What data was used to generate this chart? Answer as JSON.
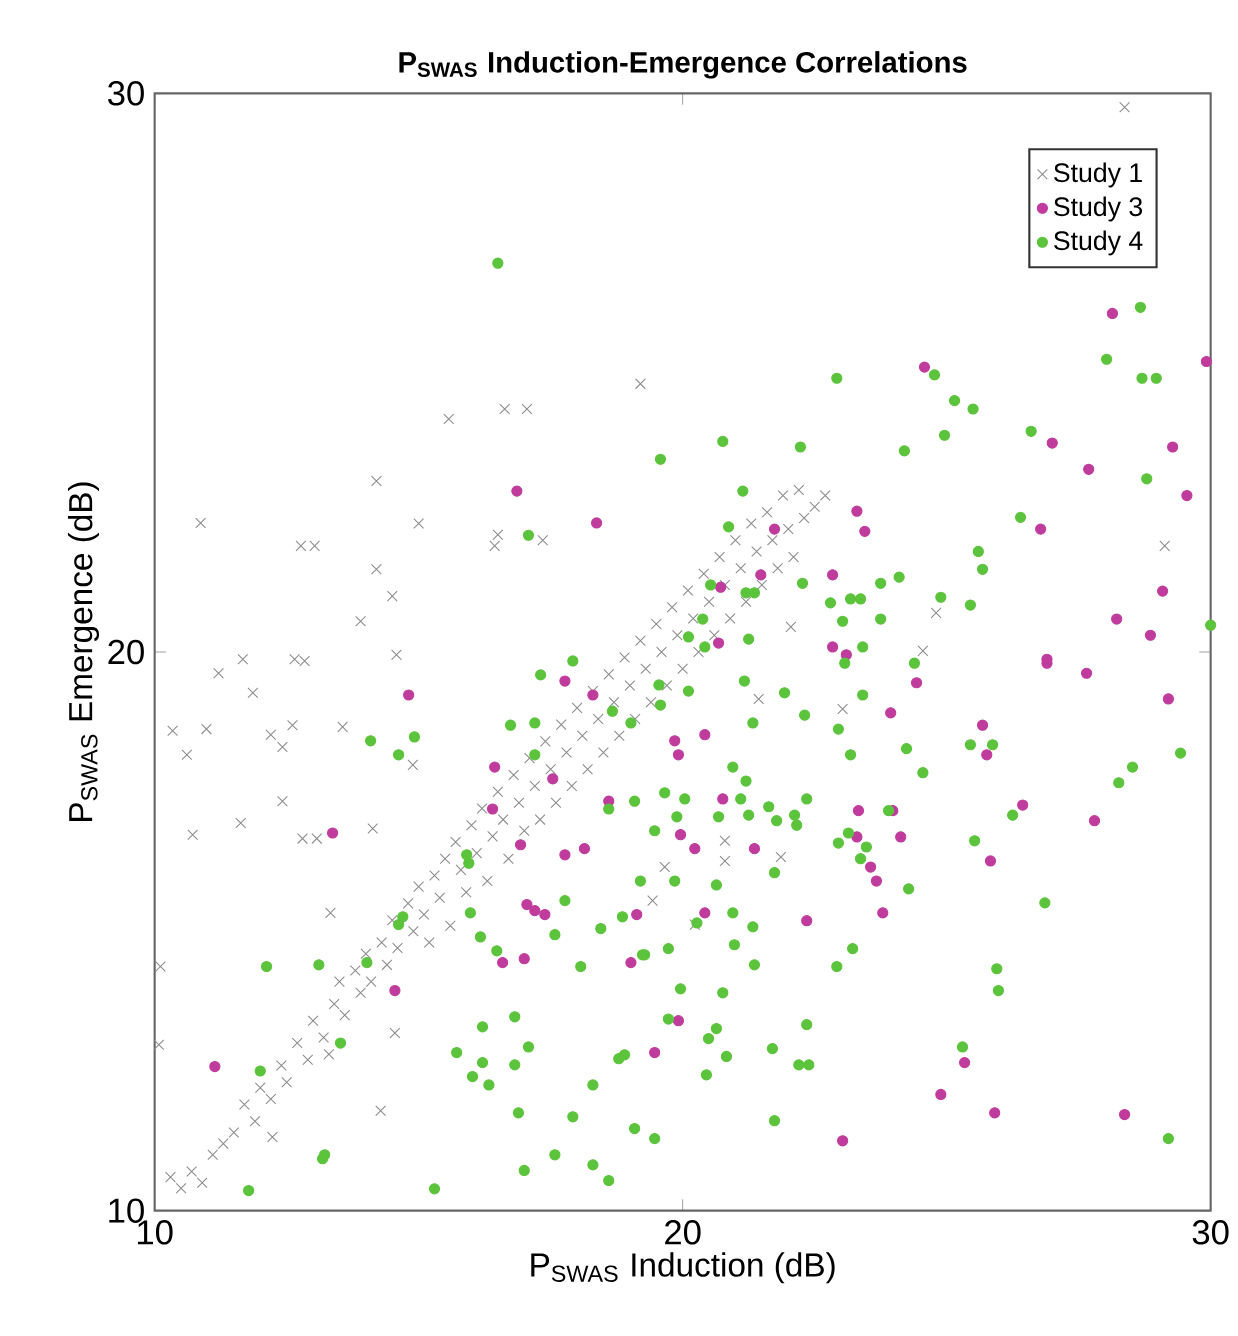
{
  "chart_data": {
    "type": "scatter",
    "title": "**P$_{SWAS}$ Induction-Emergence Correlations**",
    "xlabel": "P$_{SWAS}$ Induction (dB)",
    "ylabel": "P$_{SWAS}$ Emergence (dB)",
    "xlim": [
      10,
      30
    ],
    "ylim": [
      10,
      30
    ],
    "xticks": [
      10,
      20,
      30
    ],
    "yticks": [
      10,
      20,
      30
    ],
    "grid": false,
    "legend": "top right",
    "series": [
      {
        "name": "Study 1",
        "color": "#8c8c8c",
        "marker": "cross",
        "x": [
          16.5,
          10.87,
          12.77,
          13.03,
          14.2,
          14.2,
          14.5,
          13.9,
          15.0,
          15.57,
          16.63,
          17.05,
          16.44,
          17.35,
          19.2,
          28.37,
          29.13,
          11.21,
          11.67,
          11.86,
          12.65,
          12.84,
          14.58,
          10.34,
          10.98,
          10.61,
          12.2,
          12.42,
          12.61,
          13.56,
          12.42,
          11.63,
          10.72,
          12.8,
          13.07,
          14.13,
          14.89,
          10.11,
          10.08,
          13.33,
          14.55,
          14.28,
          12.23,
          10.3,
          10.5,
          10.7,
          10.9,
          11.1,
          11.3,
          11.5,
          11.7,
          11.9,
          12.0,
          12.2,
          12.4,
          12.5,
          12.7,
          12.9,
          13.0,
          13.2,
          13.3,
          13.4,
          13.5,
          13.6,
          13.8,
          13.9,
          14.0,
          14.1,
          14.3,
          14.4,
          14.5,
          14.6,
          14.8,
          14.9,
          15.0,
          15.1,
          15.2,
          15.3,
          15.4,
          15.5,
          15.6,
          15.7,
          15.8,
          15.9,
          16.0,
          16.1,
          16.2,
          16.3,
          16.4,
          16.5,
          16.6,
          16.7,
          16.8,
          16.9,
          17.0,
          17.1,
          17.2,
          17.3,
          17.4,
          17.5,
          17.6,
          17.7,
          17.8,
          17.9,
          18.0,
          18.1,
          18.2,
          18.3,
          18.4,
          18.5,
          18.6,
          18.7,
          18.8,
          18.9,
          19.0,
          19.1,
          19.2,
          19.3,
          19.4,
          19.5,
          19.6,
          19.7,
          19.8,
          19.9,
          20.0,
          20.1,
          20.2,
          20.3,
          20.4,
          20.5,
          20.6,
          20.7,
          20.8,
          20.9,
          21.0,
          21.1,
          21.2,
          21.3,
          21.4,
          21.5,
          21.6,
          21.7,
          21.8,
          21.9,
          22.0,
          22.1,
          22.2,
          22.3,
          22.5,
          22.7,
          24.8,
          24.55,
          22.05,
          23.03,
          21.44,
          20.8,
          20.8,
          21.86,
          19.66,
          19.43,
          20.23
        ],
        "values": [
          22.1,
          22.31,
          21.9,
          21.9,
          23.06,
          21.48,
          21.0,
          20.55,
          22.3,
          24.17,
          24.35,
          24.35,
          21.9,
          22.0,
          24.8,
          29.75,
          21.9,
          19.62,
          19.87,
          19.27,
          19.87,
          19.84,
          19.95,
          18.59,
          18.62,
          18.16,
          18.52,
          18.3,
          18.69,
          18.66,
          17.33,
          16.94,
          16.73,
          16.66,
          16.66,
          16.84,
          17.98,
          14.37,
          12.97,
          15.33,
          13.18,
          11.79,
          11.32,
          10.6,
          10.4,
          10.7,
          10.5,
          11.0,
          11.2,
          11.4,
          11.9,
          11.6,
          12.2,
          12.0,
          12.6,
          12.3,
          13.0,
          12.7,
          13.4,
          13.1,
          12.8,
          13.7,
          14.1,
          13.5,
          14.3,
          13.9,
          14.6,
          14.1,
          14.8,
          14.4,
          15.2,
          14.7,
          15.5,
          15.0,
          15.8,
          15.3,
          14.8,
          16.0,
          15.6,
          16.3,
          15.1,
          16.6,
          16.1,
          15.7,
          16.9,
          16.4,
          17.2,
          15.9,
          16.7,
          17.5,
          17.0,
          16.3,
          17.8,
          17.3,
          16.8,
          18.1,
          17.6,
          17.0,
          18.4,
          17.9,
          17.3,
          18.7,
          18.2,
          17.6,
          19.0,
          18.5,
          17.9,
          19.3,
          18.8,
          18.2,
          19.6,
          19.1,
          18.5,
          19.9,
          19.4,
          18.8,
          20.2,
          19.7,
          19.1,
          20.5,
          20.0,
          19.4,
          20.8,
          20.3,
          19.7,
          21.1,
          20.6,
          20.0,
          21.4,
          20.9,
          20.3,
          21.7,
          21.2,
          20.6,
          22.0,
          21.5,
          20.9,
          22.3,
          21.8,
          21.2,
          22.5,
          22.0,
          21.5,
          22.8,
          22.2,
          21.7,
          22.9,
          22.4,
          22.6,
          22.8,
          20.7,
          20.02,
          20.45,
          18.98,
          19.16,
          16.62,
          16.26,
          16.33,
          16.15,
          15.55,
          15.12
        ]
      },
      {
        "name": "Study 3",
        "color": "#c03c9c",
        "marker": "circle",
        "x": [
          16.86,
          18.37,
          28.14,
          29.92,
          24.58,
          27.0,
          29.28,
          27.69,
          29.55,
          23.3,
          23.45,
          26.78,
          21.74,
          21.48,
          22.84,
          29.09,
          28.22,
          28.86,
          22.84,
          23.1,
          26.9,
          20.72,
          20.68,
          26.9,
          27.65,
          29.2,
          24.43,
          23.94,
          25.68,
          25.76,
          26.44,
          27.8,
          23.33,
          23.98,
          24.13,
          23.3,
          23.56,
          23.67,
          25.83,
          23.79,
          22.35,
          21.36,
          20.23,
          19.96,
          20.42,
          20.76,
          19.85,
          19.92,
          20.42,
          19.92,
          19.47,
          25.34,
          24.89,
          25.91,
          28.37,
          23.03,
          14.81,
          17.77,
          18.3,
          16.44,
          17.54,
          16.4,
          18.6,
          13.37,
          16.93,
          17.77,
          18.14,
          17.05,
          17.2,
          17.39,
          16.59,
          17.0,
          19.02,
          19.13,
          14.55,
          11.14
        ],
        "values": [
          22.88,
          22.31,
          26.06,
          25.2,
          25.1,
          23.74,
          23.67,
          23.27,
          22.8,
          22.52,
          22.16,
          22.2,
          22.2,
          21.38,
          21.38,
          21.09,
          20.59,
          20.3,
          20.09,
          19.95,
          19.87,
          21.16,
          20.16,
          19.8,
          19.62,
          19.16,
          19.45,
          18.91,
          18.69,
          18.16,
          17.26,
          16.98,
          17.16,
          17.16,
          16.69,
          16.69,
          16.15,
          15.9,
          16.26,
          15.33,
          15.19,
          16.48,
          16.48,
          16.73,
          15.33,
          17.37,
          18.41,
          18.16,
          18.52,
          13.4,
          12.83,
          12.65,
          12.08,
          11.75,
          11.72,
          11.25,
          19.23,
          19.48,
          19.23,
          17.94,
          17.73,
          17.19,
          17.33,
          16.76,
          16.55,
          16.37,
          16.48,
          15.48,
          15.37,
          15.3,
          14.44,
          14.51,
          14.44,
          15.3,
          13.94,
          12.58
        ]
      },
      {
        "name": "Study 4",
        "color": "#5cc43c",
        "marker": "circle",
        "x": [
          16.5,
          17.08,
          28.67,
          28.03,
          28.7,
          28.97,
          22.92,
          24.77,
          25.15,
          25.5,
          24.96,
          26.6,
          20.76,
          22.23,
          24.2,
          19.58,
          21.14,
          28.79,
          26.4,
          20.87,
          25.6,
          25.68,
          30.0,
          24.1,
          23.75,
          23.18,
          23.37,
          22.8,
          24.89,
          25.45,
          23.75,
          23.03,
          22.27,
          21.2,
          21.36,
          20.53,
          20.38,
          20.11,
          20.42,
          23.41,
          21.25,
          23.07,
          24.39,
          19.55,
          20.11,
          19.58,
          21.93,
          22.31,
          23.41,
          21.33,
          22.95,
          23.18,
          24.24,
          24.55,
          25.45,
          25.87,
          28.52,
          28.26,
          29.43,
          21.17,
          20.95,
          21.2,
          20.04,
          19.66,
          20.68,
          21.1,
          21.25,
          21.63,
          21.78,
          22.12,
          22.16,
          22.35,
          23.9,
          22.95,
          23.14,
          23.37,
          23.48,
          25.53,
          26.25,
          26.86,
          24.28,
          19.89,
          19.47,
          19.85,
          20.64,
          20.95,
          21.33,
          20.27,
          20.98,
          21.36,
          21.74,
          23.22,
          22.92,
          19.28,
          19.73,
          19.96,
          20.76,
          19.73,
          20.64,
          20.49,
          20.83,
          20.45,
          21.7,
          22.35,
          22.2,
          22.39,
          21.74,
          25.95,
          25.98,
          25.3,
          29.2,
          19.47,
          17.92,
          17.31,
          18.67,
          19.02,
          16.74,
          17.2,
          17.2,
          14.09,
          14.62,
          14.92,
          18.6,
          19.09,
          15.91,
          15.95,
          14.7,
          14.62,
          15.98,
          16.17,
          16.48,
          17.58,
          17.77,
          18.45,
          18.86,
          19.2,
          19.24,
          18.07,
          12.12,
          13.11,
          14.02,
          13.52,
          12.0,
          15.72,
          16.21,
          16.82,
          17.08,
          16.02,
          16.33,
          16.21,
          16.82,
          18.3,
          18.79,
          18.9,
          16.89,
          17.92,
          19.09,
          17.58,
          17.0,
          18.3,
          18.6,
          13.22,
          13.18,
          11.78,
          15.3
        ],
        "values": [
          26.96,
          22.09,
          26.17,
          25.24,
          24.9,
          24.9,
          24.9,
          24.96,
          24.5,
          24.35,
          23.88,
          23.95,
          23.77,
          23.67,
          23.6,
          23.45,
          22.88,
          23.1,
          22.41,
          22.24,
          21.8,
          21.48,
          20.48,
          21.34,
          21.23,
          20.95,
          20.95,
          20.88,
          20.98,
          20.84,
          20.59,
          20.55,
          21.23,
          21.06,
          21.06,
          21.2,
          20.59,
          20.27,
          20.09,
          20.09,
          20.23,
          19.8,
          19.8,
          19.41,
          19.3,
          19.05,
          19.27,
          18.87,
          19.23,
          18.73,
          18.62,
          18.16,
          18.27,
          17.84,
          18.34,
          18.34,
          17.94,
          17.66,
          18.19,
          19.48,
          17.94,
          17.69,
          17.37,
          17.48,
          17.05,
          17.37,
          17.08,
          17.23,
          16.98,
          17.08,
          16.9,
          17.37,
          17.16,
          16.58,
          16.76,
          16.3,
          16.51,
          16.62,
          17.08,
          15.51,
          15.76,
          17.05,
          16.8,
          15.9,
          15.83,
          15.33,
          15.08,
          15.15,
          14.76,
          14.4,
          16.05,
          14.69,
          14.37,
          14.58,
          14.69,
          13.97,
          13.9,
          13.43,
          13.26,
          13.08,
          12.76,
          12.43,
          12.9,
          13.33,
          12.61,
          12.61,
          11.61,
          14.33,
          13.94,
          12.93,
          11.29,
          11.29,
          19.84,
          19.59,
          18.94,
          18.73,
          18.69,
          18.73,
          18.16,
          18.41,
          18.16,
          18.48,
          17.19,
          17.33,
          16.37,
          16.22,
          15.26,
          15.12,
          15.33,
          14.9,
          14.65,
          14.94,
          15.55,
          15.05,
          15.26,
          15.9,
          14.58,
          14.37,
          14.37,
          14.4,
          14.44,
          13.0,
          12.5,
          12.83,
          13.29,
          13.47,
          12.93,
          12.4,
          12.25,
          12.65,
          12.61,
          12.25,
          12.72,
          12.79,
          11.75,
          11.68,
          11.47,
          11.0,
          10.72,
          10.82,
          10.54,
          11.0,
          10.93,
          10.36,
          10.39
        ]
      }
    ]
  }
}
